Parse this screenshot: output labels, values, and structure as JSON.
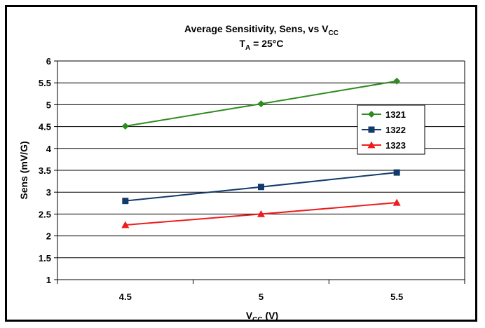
{
  "chart_data": {
    "type": "line",
    "title": {
      "line1_main": "Average Sensitivity, Sens, vs V",
      "line1_sub": "CC",
      "line2_main": "T",
      "line2_sub": "A",
      "line2_rest": " = 25°C"
    },
    "xlabel": {
      "main": "V",
      "sub": "CC",
      "rest": " (V)"
    },
    "ylabel": "Sens (mV/G)",
    "categories": [
      "4.5",
      "5",
      "5.5"
    ],
    "ylim": [
      1,
      6
    ],
    "yticks": [
      "1",
      "1.5",
      "2",
      "2.5",
      "3",
      "3.5",
      "4",
      "4.5",
      "5",
      "5.5",
      "6"
    ],
    "grid": true,
    "legend_position": "right",
    "series": [
      {
        "name": "1321",
        "values": [
          4.51,
          5.02,
          5.54
        ],
        "color": "#2e8b1e",
        "marker": "diamond"
      },
      {
        "name": "1322",
        "values": [
          2.8,
          3.12,
          3.45
        ],
        "color": "#123a6b",
        "marker": "square"
      },
      {
        "name": "1323",
        "values": [
          2.25,
          2.5,
          2.76
        ],
        "color": "#ee1c1c",
        "marker": "triangle"
      }
    ]
  }
}
